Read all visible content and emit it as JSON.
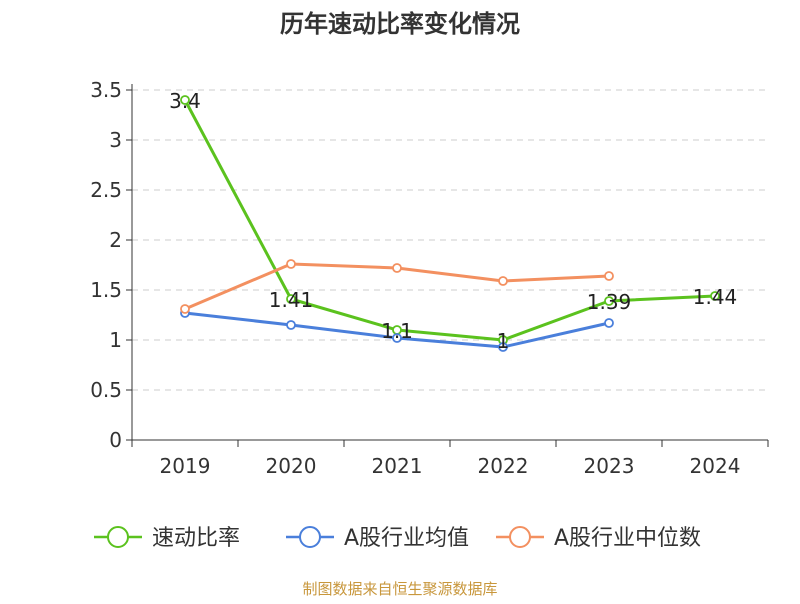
{
  "chart_data": {
    "type": "line",
    "title": "历年速动比率变化情况",
    "categories": [
      "2019",
      "2020",
      "2021",
      "2022",
      "2023",
      "2024"
    ],
    "y_ticks": [
      "0",
      "0.5",
      "1",
      "1.5",
      "2",
      "2.5",
      "3",
      "3.5"
    ],
    "ylim": [
      0,
      3.5
    ],
    "grid": true,
    "legend_position": "bottom",
    "series": [
      {
        "name": "速动比率",
        "color": "#5bc21e",
        "values": [
          3.4,
          1.41,
          1.1,
          1.0,
          1.39,
          1.44
        ],
        "labels": [
          "3.4",
          "1.41",
          "1.1",
          "1",
          "1.39",
          "1.44"
        ]
      },
      {
        "name": "A股行业均值",
        "color": "#4a7fdb",
        "values": [
          1.27,
          1.15,
          1.02,
          0.93,
          1.17,
          null
        ],
        "labels": []
      },
      {
        "name": "A股行业中位数",
        "color": "#f39060",
        "values": [
          1.31,
          1.76,
          1.72,
          1.59,
          1.64,
          null
        ],
        "labels": []
      }
    ]
  },
  "source_note": "制图数据来自恒生聚源数据库"
}
